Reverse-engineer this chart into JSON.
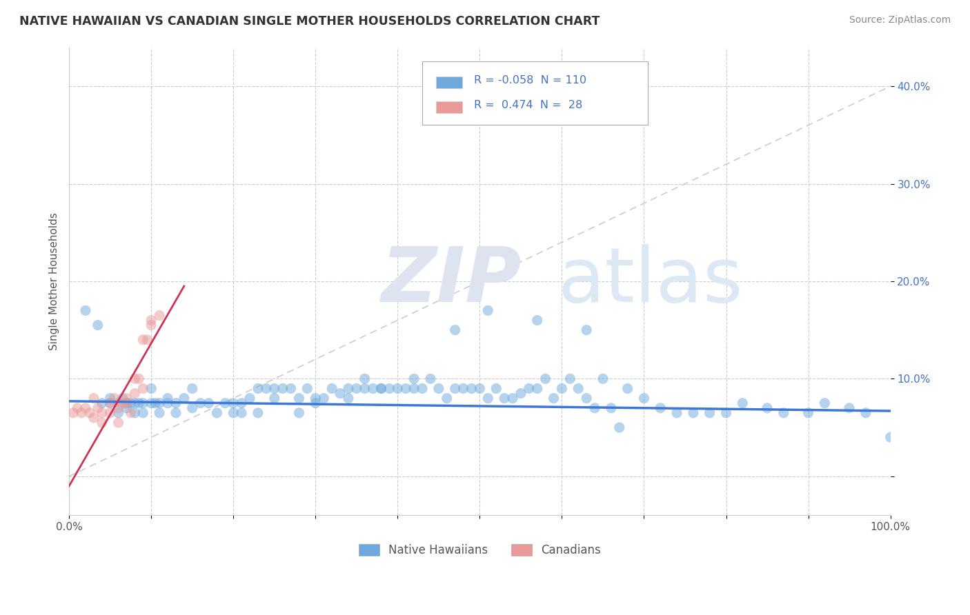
{
  "title": "NATIVE HAWAIIAN VS CANADIAN SINGLE MOTHER HOUSEHOLDS CORRELATION CHART",
  "source": "Source: ZipAtlas.com",
  "ylabel": "Single Mother Households",
  "xlim": [
    0.0,
    1.0
  ],
  "ylim": [
    -0.04,
    0.44
  ],
  "x_ticks": [
    0.0,
    0.1,
    0.2,
    0.3,
    0.4,
    0.5,
    0.6,
    0.7,
    0.8,
    0.9,
    1.0
  ],
  "x_tick_labels": [
    "0.0%",
    "",
    "",
    "",
    "",
    "",
    "",
    "",
    "",
    "",
    "100.0%"
  ],
  "y_ticks": [
    0.0,
    0.1,
    0.2,
    0.3,
    0.4
  ],
  "y_tick_labels": [
    "",
    "10.0%",
    "20.0%",
    "30.0%",
    "40.0%"
  ],
  "grid_color": "#cccccc",
  "background_color": "#ffffff",
  "blue_scatter_color": "#6fa8dc",
  "pink_scatter_color": "#ea9999",
  "blue_line_color": "#3c78d8",
  "pink_line_color": "#cc3355",
  "diag_line_color": "#cccccc",
  "scatter_alpha": 0.5,
  "scatter_size": 120,
  "legend_label_blue": "Native Hawaiians",
  "legend_label_pink": "Canadians",
  "blue_r": "-0.058",
  "blue_n": "110",
  "pink_r": "0.474",
  "pink_n": "28",
  "blue_scatter_x": [
    0.02,
    0.035,
    0.04,
    0.05,
    0.05,
    0.06,
    0.06,
    0.065,
    0.07,
    0.07,
    0.075,
    0.08,
    0.08,
    0.085,
    0.09,
    0.09,
    0.1,
    0.1,
    0.105,
    0.11,
    0.11,
    0.12,
    0.12,
    0.13,
    0.13,
    0.14,
    0.15,
    0.15,
    0.16,
    0.17,
    0.18,
    0.19,
    0.2,
    0.2,
    0.21,
    0.22,
    0.23,
    0.24,
    0.25,
    0.25,
    0.26,
    0.27,
    0.28,
    0.29,
    0.3,
    0.31,
    0.32,
    0.33,
    0.34,
    0.35,
    0.36,
    0.36,
    0.37,
    0.38,
    0.39,
    0.4,
    0.41,
    0.42,
    0.43,
    0.44,
    0.45,
    0.46,
    0.47,
    0.48,
    0.49,
    0.5,
    0.51,
    0.52,
    0.53,
    0.54,
    0.55,
    0.56,
    0.57,
    0.58,
    0.59,
    0.6,
    0.61,
    0.62,
    0.63,
    0.64,
    0.65,
    0.66,
    0.67,
    0.68,
    0.7,
    0.72,
    0.74,
    0.76,
    0.78,
    0.8,
    0.82,
    0.85,
    0.87,
    0.9,
    0.92,
    0.95,
    0.97,
    1.0,
    0.63,
    0.57,
    0.51,
    0.47,
    0.42,
    0.38,
    0.34,
    0.3,
    0.21,
    0.23,
    0.28
  ],
  "blue_scatter_y": [
    0.17,
    0.155,
    0.075,
    0.08,
    0.075,
    0.075,
    0.065,
    0.08,
    0.075,
    0.07,
    0.075,
    0.075,
    0.065,
    0.075,
    0.075,
    0.065,
    0.09,
    0.075,
    0.075,
    0.065,
    0.075,
    0.08,
    0.075,
    0.075,
    0.065,
    0.08,
    0.09,
    0.07,
    0.075,
    0.075,
    0.065,
    0.075,
    0.075,
    0.065,
    0.075,
    0.08,
    0.09,
    0.09,
    0.09,
    0.08,
    0.09,
    0.09,
    0.08,
    0.09,
    0.08,
    0.08,
    0.09,
    0.085,
    0.08,
    0.09,
    0.09,
    0.1,
    0.09,
    0.09,
    0.09,
    0.09,
    0.09,
    0.1,
    0.09,
    0.1,
    0.09,
    0.08,
    0.09,
    0.09,
    0.09,
    0.09,
    0.08,
    0.09,
    0.08,
    0.08,
    0.085,
    0.09,
    0.09,
    0.1,
    0.08,
    0.09,
    0.1,
    0.09,
    0.08,
    0.07,
    0.1,
    0.07,
    0.05,
    0.09,
    0.08,
    0.07,
    0.065,
    0.065,
    0.065,
    0.065,
    0.075,
    0.07,
    0.065,
    0.065,
    0.075,
    0.07,
    0.065,
    0.04,
    0.15,
    0.16,
    0.17,
    0.15,
    0.09,
    0.09,
    0.09,
    0.075,
    0.065,
    0.065,
    0.065
  ],
  "pink_scatter_x": [
    0.005,
    0.01,
    0.015,
    0.02,
    0.025,
    0.03,
    0.03,
    0.035,
    0.04,
    0.04,
    0.05,
    0.05,
    0.055,
    0.06,
    0.06,
    0.065,
    0.07,
    0.07,
    0.075,
    0.08,
    0.08,
    0.085,
    0.09,
    0.09,
    0.095,
    0.1,
    0.1,
    0.11
  ],
  "pink_scatter_y": [
    0.065,
    0.07,
    0.065,
    0.07,
    0.065,
    0.08,
    0.06,
    0.07,
    0.065,
    0.055,
    0.075,
    0.065,
    0.08,
    0.07,
    0.055,
    0.075,
    0.075,
    0.08,
    0.065,
    0.085,
    0.1,
    0.1,
    0.14,
    0.09,
    0.14,
    0.155,
    0.16,
    0.165
  ]
}
